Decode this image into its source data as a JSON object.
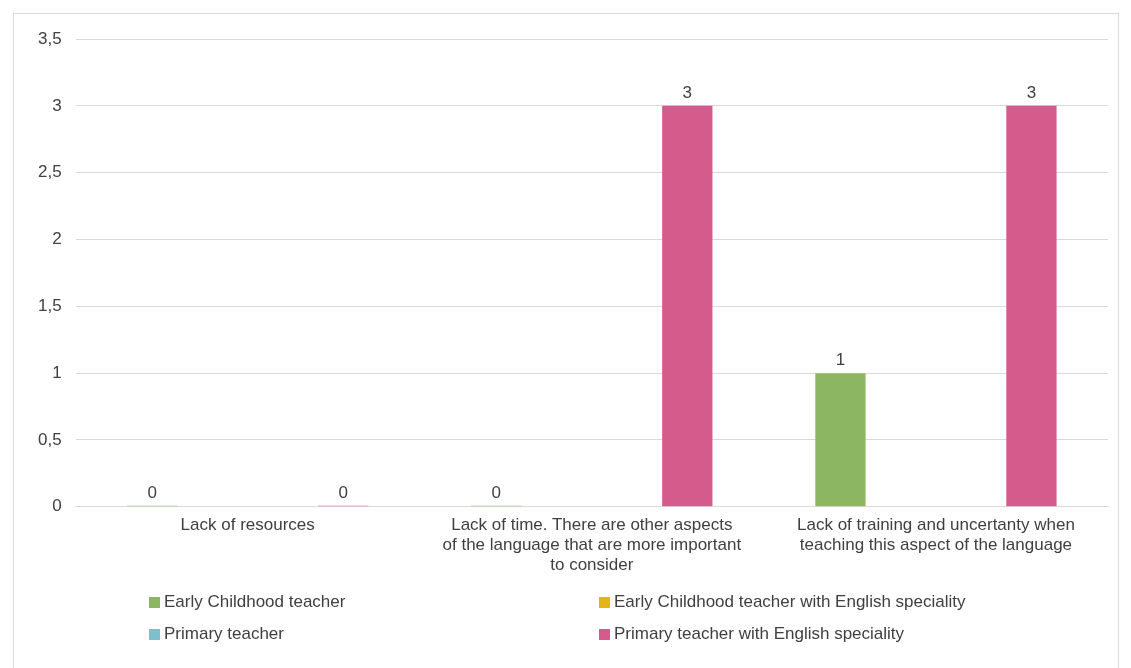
{
  "chart_data": {
    "type": "bar",
    "categories": [
      "Lack of resources",
      "Lack of time. There are other aspects of the language that are more important to consider",
      "Lack of training and uncertanty when teaching this aspect of the language"
    ],
    "series": [
      {
        "name": "Early Childhood teacher",
        "color": "#8db662",
        "values": [
          0,
          0,
          1
        ]
      },
      {
        "name": "Early Childhood teacher with English speciality",
        "color": "#e6b417",
        "values": [
          null,
          null,
          null
        ]
      },
      {
        "name": "Primary teacher",
        "color": "#7ebfce",
        "values": [
          null,
          null,
          null
        ]
      },
      {
        "name": "Primary teacher with English speciality",
        "color": "#d45b8c",
        "values": [
          0,
          3,
          3
        ]
      }
    ],
    "ylim": [
      0,
      3.5
    ],
    "yticks": [
      0,
      {
        "value": 0.5,
        "label": "0,5"
      },
      1,
      {
        "value": 1.5,
        "label": "1,5"
      },
      2,
      {
        "value": 2.5,
        "label": "2,5"
      },
      3,
      {
        "value": 3.5,
        "label": "3,5"
      }
    ],
    "grid": "y",
    "legend": "bottom",
    "data_labels": true
  }
}
